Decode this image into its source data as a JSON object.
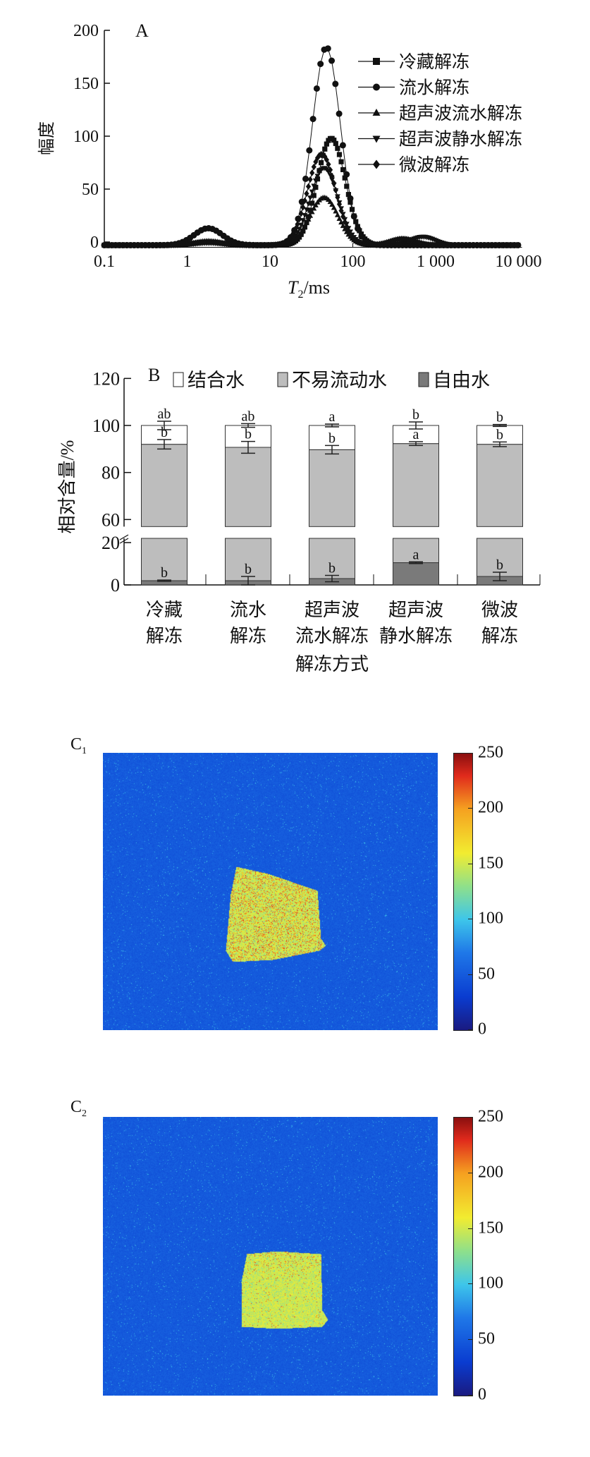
{
  "chart_data": [
    {
      "panel": "A",
      "type": "line",
      "title": "",
      "xlabel": "T2/ms",
      "xlabel_main": "T",
      "xlabel_sub": "2",
      "xlabel_unit": "/ms",
      "ylabel": "幅度",
      "xscale": "log",
      "xlim": [
        0.1,
        10000
      ],
      "ylim": [
        0,
        200
      ],
      "xticks": [
        "0.1",
        "1",
        "10",
        "100",
        "1 000",
        "10 000"
      ],
      "yticks": [
        "0",
        "50",
        "100",
        "150",
        "200"
      ],
      "legend_position": "right",
      "baseline": -3,
      "series": [
        {
          "name": "冷藏解冻",
          "marker": "square",
          "peaks": [
            {
              "T2": 1.8,
              "amp": 3
            },
            {
              "T2": 55,
              "amp": 101
            }
          ]
        },
        {
          "name": "流水解冻",
          "marker": "circle",
          "peaks": [
            {
              "T2": 1.8,
              "amp": 16
            },
            {
              "T2": 48,
              "amp": 187
            }
          ]
        },
        {
          "name": "超声波流水解冻",
          "marker": "triangle-up",
          "peaks": [
            {
              "T2": 1.8,
              "amp": 4
            },
            {
              "T2": 45,
              "amp": 45
            }
          ]
        },
        {
          "name": "超声波静水解冻",
          "marker": "triangle-down",
          "peaks": [
            {
              "T2": 1.8,
              "amp": 2
            },
            {
              "T2": 45,
              "amp": 73
            },
            {
              "T2": 700,
              "amp": 8
            }
          ]
        },
        {
          "name": "微波解冻",
          "marker": "diamond",
          "peaks": [
            {
              "T2": 1.8,
              "amp": 3
            },
            {
              "T2": 42,
              "amp": 86
            },
            {
              "T2": 400,
              "amp": 6
            }
          ]
        }
      ]
    },
    {
      "panel": "B",
      "type": "bar",
      "stacked": true,
      "xlabel": "解冻方式",
      "ylabel": "相对含量/%",
      "ylim": [
        0,
        120
      ],
      "axis_break": [
        20,
        60
      ],
      "yticks": [
        "0",
        "20",
        "60",
        "80",
        "100",
        "120"
      ],
      "legend_position": "top",
      "categories": [
        [
          "冷藏",
          "解冻"
        ],
        [
          "流水",
          "解冻"
        ],
        [
          "超声波",
          "流水解冻"
        ],
        [
          "超声波",
          "静水解冻"
        ],
        [
          "微波",
          "解冻"
        ]
      ],
      "series": [
        {
          "name": "自由水",
          "color": "#7a7a7a",
          "values": [
            2.0,
            2.0,
            3.0,
            10.5,
            4.0
          ],
          "errors": [
            0.3,
            2.0,
            1.5,
            0.4,
            2.0
          ],
          "letters": [
            "b",
            "b",
            "b",
            "a",
            "b"
          ]
        },
        {
          "name": "不易流动水",
          "color": "#bdbdbd",
          "values": [
            90.0,
            88.7,
            86.7,
            81.8,
            88.0
          ],
          "errors": [
            2.0,
            2.5,
            1.8,
            0.8,
            1.0
          ],
          "letters": [
            "b",
            "b",
            "b",
            "a",
            "b"
          ]
        },
        {
          "name": "结合水",
          "color": "#ffffff",
          "values": [
            8.0,
            9.3,
            10.3,
            7.7,
            8.0
          ],
          "errors": [
            1.8,
            0.8,
            0.6,
            1.5,
            0.4
          ],
          "letters": [
            "ab",
            "ab",
            "a",
            "b",
            "b"
          ]
        }
      ]
    }
  ],
  "images": [
    {
      "label": "C",
      "sub": "1",
      "colorbar_ticks": [
        "250",
        "200",
        "150",
        "100",
        "50",
        "0"
      ],
      "colorbar_range": [
        0,
        250
      ]
    },
    {
      "label": "C",
      "sub": "2",
      "colorbar_ticks": [
        "250",
        "200",
        "150",
        "100",
        "50",
        "0"
      ],
      "colorbar_range": [
        0,
        250
      ]
    }
  ],
  "colors": {
    "background_low": "#2a4fb0",
    "sample_high": "#e8e43a"
  }
}
